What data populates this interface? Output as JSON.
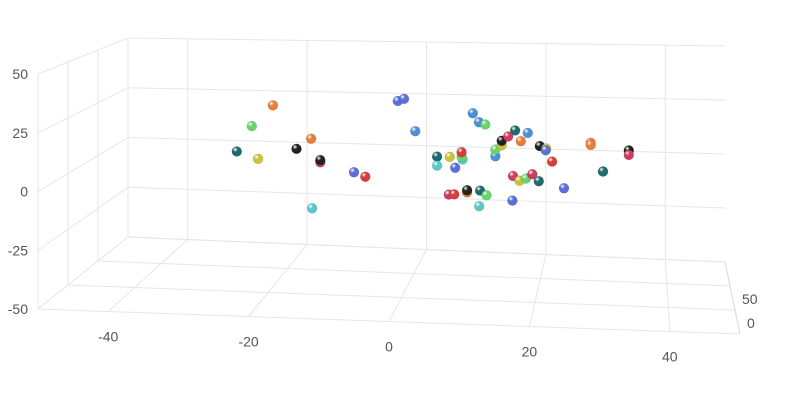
{
  "chart_data": {
    "type": "scatter",
    "title": "",
    "xlabel": "",
    "ylabel": "",
    "zlabel": "",
    "x_ticks": [
      "-40",
      "-20",
      "0",
      "20",
      "40"
    ],
    "y_ticks": [
      "-50",
      "-25",
      "0",
      "25",
      "50"
    ],
    "z_ticks": [
      "0",
      "50"
    ],
    "xlim": [
      -50,
      50
    ],
    "ylim": [
      -50,
      50
    ],
    "zlim": [
      -50,
      100
    ],
    "grid": true,
    "legend": "none",
    "colors": [
      "#e67e3a",
      "#6bd36b",
      "#1f6b6b",
      "#c9c23d",
      "#222222",
      "#cc3d5f",
      "#d63d3d",
      "#5b6fd6",
      "#4b8fd6",
      "#5bc9c9"
    ],
    "points": [
      {
        "x": -22,
        "y": 26,
        "z": 45,
        "c": "#e67e3a"
      },
      {
        "x": -25,
        "y": 17,
        "z": 40,
        "c": "#6bd36b"
      },
      {
        "x": -27,
        "y": 6,
        "z": 35,
        "c": "#1f6b6b"
      },
      {
        "x": -24,
        "y": 2,
        "z": 40,
        "c": "#c9c23d"
      },
      {
        "x": -16,
        "y": 11,
        "z": 45,
        "c": "#e67e3a"
      },
      {
        "x": -18,
        "y": 7,
        "z": 40,
        "c": "#222222"
      },
      {
        "x": -14,
        "y": 2,
        "z": 35,
        "c": "#cc3d5f"
      },
      {
        "x": -14,
        "y": 3,
        "z": 35,
        "c": "#222222"
      },
      {
        "x": -15,
        "y": -18,
        "z": 30,
        "c": "#5bc9c9"
      },
      {
        "x": -9,
        "y": -3,
        "z": 40,
        "c": "#5b6fd6"
      },
      {
        "x": -7,
        "y": -4,
        "z": 35,
        "c": "#d63d3d"
      },
      {
        "x": -3,
        "y": 27,
        "z": 60,
        "c": "#5b6fd6"
      },
      {
        "x": -2,
        "y": 28,
        "z": 60,
        "c": "#5b6fd6"
      },
      {
        "x": 0,
        "y": 14,
        "z": 55,
        "c": "#4b8fd6"
      },
      {
        "x": 4,
        "y": 5,
        "z": 40,
        "c": "#1f6b6b"
      },
      {
        "x": 4,
        "y": 1,
        "z": 40,
        "c": "#5bc9c9"
      },
      {
        "x": 6,
        "y": 5,
        "z": 40,
        "c": "#c9c23d"
      },
      {
        "x": 7,
        "y": 1,
        "z": 35,
        "c": "#5b6fd6"
      },
      {
        "x": 8,
        "y": 4,
        "z": 40,
        "c": "#5bc9c9"
      },
      {
        "x": 8,
        "y": 6,
        "z": 35,
        "c": "#6bd36b"
      },
      {
        "x": 8,
        "y": 8,
        "z": 35,
        "c": "#d63d3d"
      },
      {
        "x": 6,
        "y": -11,
        "z": 35,
        "c": "#cc3d5f"
      },
      {
        "x": 7,
        "y": -10,
        "z": 30,
        "c": "#d63d3d"
      },
      {
        "x": 9,
        "y": -9,
        "z": 30,
        "c": "#e67e3a"
      },
      {
        "x": 9,
        "y": -8,
        "z": 30,
        "c": "#222222"
      },
      {
        "x": 11,
        "y": -8,
        "z": 30,
        "c": "#1f6b6b"
      },
      {
        "x": 12,
        "y": -10,
        "z": 30,
        "c": "#6bd36b"
      },
      {
        "x": 11,
        "y": -14,
        "z": 25,
        "c": "#5bc9c9"
      },
      {
        "x": 9,
        "y": 22,
        "z": 60,
        "c": "#4b8fd6"
      },
      {
        "x": 10,
        "y": 18,
        "z": 60,
        "c": "#4b8fd6"
      },
      {
        "x": 11,
        "y": 17,
        "z": 60,
        "c": "#6bd36b"
      },
      {
        "x": 13,
        "y": 5,
        "z": 45,
        "c": "#4b8fd6"
      },
      {
        "x": 13,
        "y": 8,
        "z": 45,
        "c": "#6bd36b"
      },
      {
        "x": 14,
        "y": 10,
        "z": 45,
        "c": "#c9c23d"
      },
      {
        "x": 14,
        "y": 12,
        "z": 45,
        "c": "#222222"
      },
      {
        "x": 15,
        "y": 14,
        "z": 45,
        "c": "#cc3d5f"
      },
      {
        "x": 16,
        "y": 16,
        "z": 50,
        "c": "#1f6b6b"
      },
      {
        "x": 17,
        "y": 12,
        "z": 45,
        "c": "#e67e3a"
      },
      {
        "x": 18,
        "y": 15,
        "z": 50,
        "c": "#4b8fd6"
      },
      {
        "x": 16,
        "y": -2,
        "z": 35,
        "c": "#cc3d5f"
      },
      {
        "x": 17,
        "y": -4,
        "z": 35,
        "c": "#c9c23d"
      },
      {
        "x": 18,
        "y": -3,
        "z": 35,
        "c": "#6bd36b"
      },
      {
        "x": 19,
        "y": -1,
        "z": 35,
        "c": "#cc3d5f"
      },
      {
        "x": 20,
        "y": -4,
        "z": 35,
        "c": "#1f6b6b"
      },
      {
        "x": 16,
        "y": -12,
        "z": 30,
        "c": "#5b6fd6"
      },
      {
        "x": 20,
        "y": 10,
        "z": 45,
        "c": "#222222"
      },
      {
        "x": 21,
        "y": 9,
        "z": 45,
        "c": "#c9c23d"
      },
      {
        "x": 21,
        "y": 9,
        "z": 40,
        "c": "#5b6fd6"
      },
      {
        "x": 22,
        "y": 4,
        "z": 40,
        "c": "#d63d3d"
      },
      {
        "x": 24,
        "y": -6,
        "z": 30,
        "c": "#5b6fd6"
      },
      {
        "x": 28,
        "y": 12,
        "z": 45,
        "c": "#e67e3a"
      },
      {
        "x": 28,
        "y": 11,
        "z": 45,
        "c": "#e67e3a"
      },
      {
        "x": 30,
        "y": 1,
        "z": 35,
        "c": "#5bc9c9"
      },
      {
        "x": 30,
        "y": 1,
        "z": 35,
        "c": "#1f6b6b"
      },
      {
        "x": 34,
        "y": 9,
        "z": 45,
        "c": "#222222"
      },
      {
        "x": 34,
        "y": 7,
        "z": 45,
        "c": "#cc3d5f"
      }
    ]
  }
}
